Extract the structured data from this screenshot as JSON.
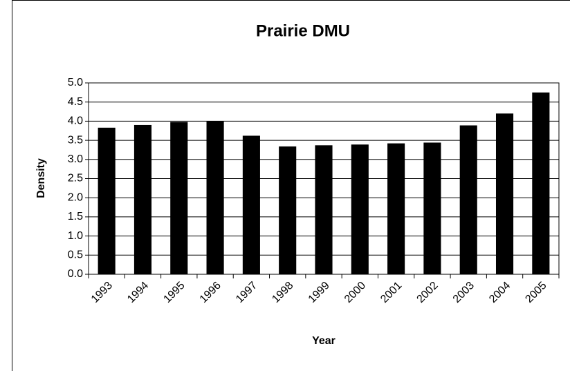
{
  "chart_data": {
    "type": "bar",
    "title": "Prairie DMU",
    "x_label": "Year",
    "y_label": "Density",
    "categories": [
      "1993",
      "1994",
      "1995",
      "1996",
      "1997",
      "1998",
      "1999",
      "2000",
      "2001",
      "2002",
      "2003",
      "2004",
      "2005"
    ],
    "values": [
      3.83,
      3.9,
      3.98,
      4.0,
      3.62,
      3.34,
      3.37,
      3.39,
      3.42,
      3.44,
      3.89,
      4.2,
      4.75
    ],
    "color": "#000000",
    "ylim": [
      0,
      5
    ],
    "yticks": [
      {
        "value": 0,
        "label": "0.0"
      },
      {
        "value": 0.5,
        "label": "0.5"
      },
      {
        "value": 1,
        "label": "1.0"
      },
      {
        "value": 1.5,
        "label": "1.5"
      },
      {
        "value": 2,
        "label": "2.0"
      },
      {
        "value": 2.5,
        "label": "2.5"
      },
      {
        "value": 3,
        "label": "3.0"
      },
      {
        "value": 3.5,
        "label": "3.5"
      },
      {
        "value": 4,
        "label": "4.0"
      },
      {
        "value": 4.5,
        "label": "4.5"
      },
      {
        "value": 5,
        "label": "5.0"
      }
    ],
    "grid": true
  }
}
